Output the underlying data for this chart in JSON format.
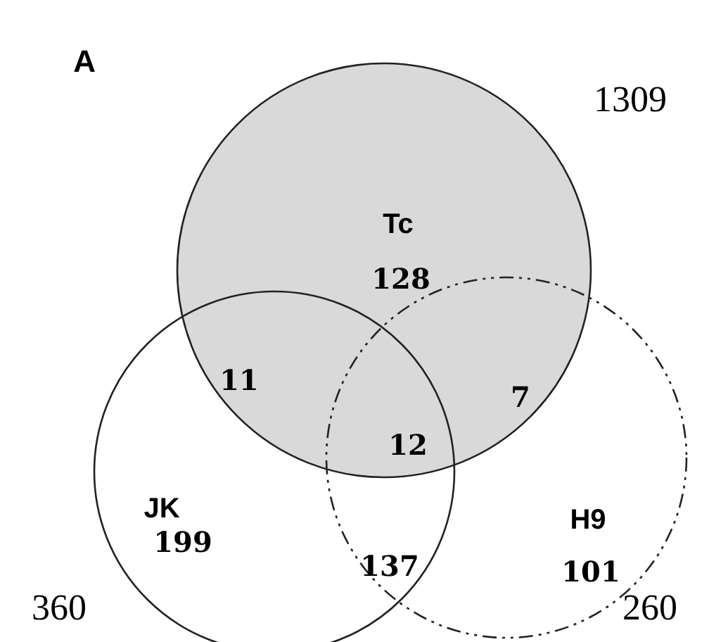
{
  "chart_data": {
    "type": "other",
    "title": "A",
    "data_labels": true,
    "categories": [
      "Tc",
      "JK",
      "H9"
    ],
    "values": [
      1309,
      360,
      260
    ],
    "colors": [
      "#d9d9d9",
      "#ffffff",
      "#ffffff"
    ],
    "annotations": [
      "128",
      "199",
      "101",
      "11",
      "7",
      "137",
      "12"
    ]
  }
}
